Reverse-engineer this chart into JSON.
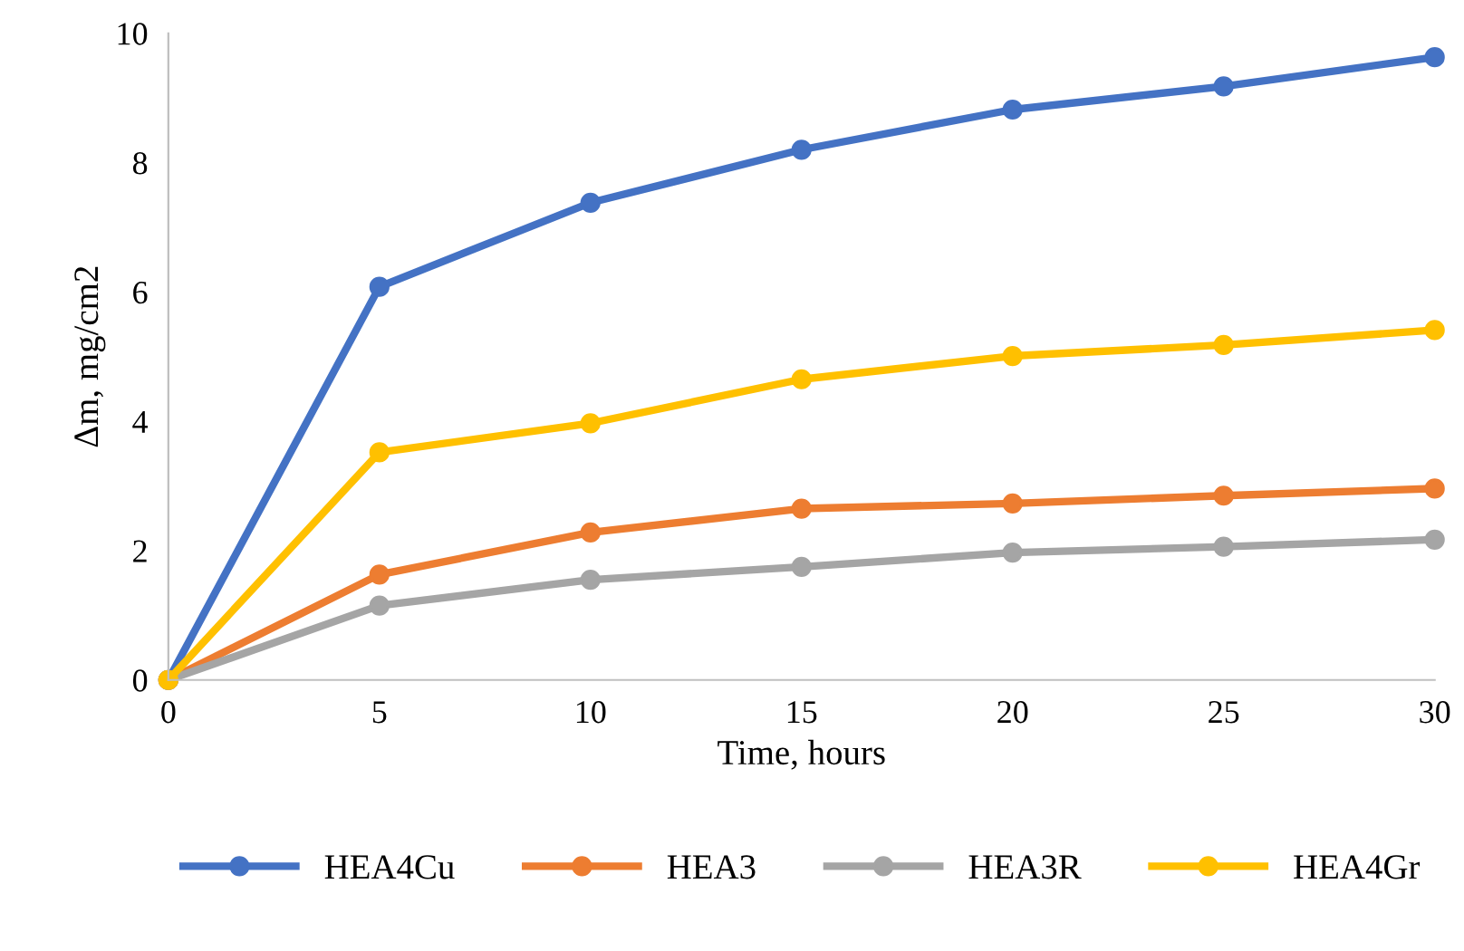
{
  "chart_data": {
    "type": "line",
    "xlabel": "Time, hours",
    "ylabel": "Δm, mg/cm2",
    "x": [
      0,
      5,
      10,
      15,
      20,
      25,
      30
    ],
    "series": [
      {
        "name": "HEA4Cu",
        "color": "#4472c4",
        "values": [
          0,
          6.08,
          7.38,
          8.2,
          8.82,
          9.18,
          9.63
        ]
      },
      {
        "name": "HEA3",
        "color": "#ed7d31",
        "values": [
          0,
          1.63,
          2.28,
          2.65,
          2.73,
          2.85,
          2.96
        ]
      },
      {
        "name": "HEA3R",
        "color": "#a5a5a5",
        "values": [
          0,
          1.15,
          1.55,
          1.75,
          1.97,
          2.06,
          2.17
        ]
      },
      {
        "name": "HEA4Gr",
        "color": "#ffc000",
        "values": [
          0,
          3.52,
          3.97,
          4.65,
          5.01,
          5.18,
          5.41
        ]
      }
    ],
    "xlim": [
      0,
      30
    ],
    "ylim": [
      0,
      10
    ],
    "xticks": [
      0,
      5,
      10,
      15,
      20,
      25,
      30
    ],
    "yticks": [
      0,
      2,
      4,
      6,
      8,
      10
    ],
    "grid": false,
    "legend": "bottom",
    "marker": "circle",
    "line_style": "solid"
  }
}
